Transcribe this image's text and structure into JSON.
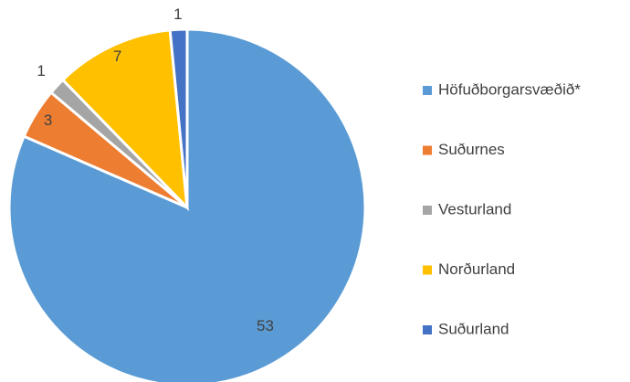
{
  "chart_data": {
    "type": "pie",
    "categories": [
      "Höfuðborgarsvæðið*",
      "Suðurnes",
      "Vesturland",
      "Norðurland",
      "Suðurland"
    ],
    "values": [
      53,
      3,
      1,
      7,
      1
    ],
    "colors": [
      "#5b9bd5",
      "#ed7d31",
      "#a5a5a5",
      "#ffc000",
      "#4472c4"
    ],
    "legend": "right"
  }
}
